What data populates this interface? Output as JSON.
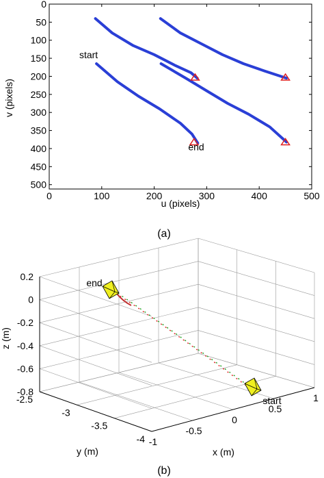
{
  "chart_data": [
    {
      "type": "line",
      "caption": "(a)",
      "xlabel": "u (pixels)",
      "ylabel": "v (pixels)",
      "xlim": [
        0,
        500
      ],
      "ylim": [
        0,
        512
      ],
      "y_reversed": true,
      "x_ticks": [
        "0",
        "100",
        "200",
        "300",
        "400",
        "500"
      ],
      "y_ticks": [
        "0",
        "50",
        "100",
        "150",
        "200",
        "250",
        "300",
        "350",
        "400",
        "450",
        "500"
      ],
      "grid": false,
      "series": [
        {
          "color": "#2a3fd6",
          "points": [
            [
              88,
              40
            ],
            [
              120,
              80
            ],
            [
              160,
              115
            ],
            [
              200,
              140
            ],
            [
              240,
              170
            ],
            [
              270,
              190
            ],
            [
              282,
              205
            ]
          ]
        },
        {
          "color": "#2a3fd6",
          "points": [
            [
              90,
              165
            ],
            [
              130,
              215
            ],
            [
              170,
              255
            ],
            [
              210,
              290
            ],
            [
              250,
              330
            ],
            [
              272,
              360
            ],
            [
              283,
              385
            ]
          ]
        },
        {
          "color": "#2a3fd6",
          "points": [
            [
              212,
              40
            ],
            [
              250,
              80
            ],
            [
              290,
              110
            ],
            [
              330,
              140
            ],
            [
              370,
              165
            ],
            [
              410,
              185
            ],
            [
              452,
              205
            ]
          ]
        },
        {
          "color": "#2a3fd6",
          "points": [
            [
              213,
              165
            ],
            [
              260,
              205
            ],
            [
              300,
              240
            ],
            [
              340,
              275
            ],
            [
              380,
              305
            ],
            [
              420,
              340
            ],
            [
              452,
              382
            ]
          ]
        }
      ],
      "markers": [
        {
          "shape": "triangle",
          "color": "#e02020",
          "x": 278,
          "y": 203
        },
        {
          "shape": "triangle",
          "color": "#e02020",
          "x": 450,
          "y": 203
        },
        {
          "shape": "triangle",
          "color": "#e02020",
          "x": 276,
          "y": 382
        },
        {
          "shape": "triangle",
          "color": "#e02020",
          "x": 450,
          "y": 382
        }
      ],
      "annotations": [
        {
          "text": "start",
          "x": 75,
          "y": 150
        },
        {
          "text": "end",
          "x": 280,
          "y": 405
        }
      ]
    },
    {
      "type": "line3d",
      "caption": "(b)",
      "xlabel": "x (m)",
      "ylabel": "y (m)",
      "zlabel": "z (m)",
      "xlim": [
        -1,
        1
      ],
      "ylim": [
        -2.5,
        -4
      ],
      "zlim": [
        -0.8,
        0.2
      ],
      "x_ticks": [
        "-1",
        "-0.5",
        "0",
        "0.5",
        "1"
      ],
      "y_ticks": [
        "-2.5",
        "-3",
        "-3.5",
        "-4"
      ],
      "z_ticks": [
        "0.2",
        "0",
        "-0.2",
        "-0.4",
        "-0.6",
        "-0.8"
      ],
      "grid": true,
      "trajectory_colors": [
        "#e02020",
        "#20a020"
      ],
      "camera_color": "#f0f020",
      "annotations": [
        {
          "text": "end"
        },
        {
          "text": "start"
        }
      ]
    }
  ]
}
